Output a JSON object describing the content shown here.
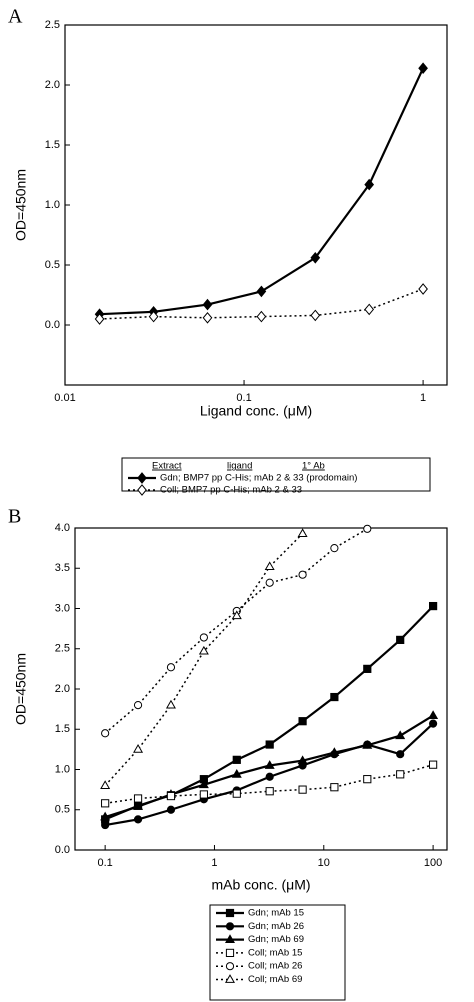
{
  "chart_data": [
    {
      "type": "line",
      "label": "A",
      "xlabel": "Ligand conc. (μM)",
      "ylabel": "OD=450nm",
      "xscale": "log",
      "xlim": [
        0.01,
        1.36
      ],
      "xticks": [
        0.01,
        0.1,
        1
      ],
      "ylim": [
        -0.5,
        2.5
      ],
      "yticks": [
        {
          "value": 0,
          "label": "0.0"
        },
        {
          "value": 0.5,
          "label": "0.5"
        },
        {
          "value": 1,
          "label": "1.0"
        },
        {
          "value": 1.5,
          "label": "1.5"
        },
        {
          "value": 2,
          "label": "2.0"
        },
        {
          "value": 2.5,
          "label": "2.5"
        }
      ],
      "x": [
        0.0156,
        0.03125,
        0.0625,
        0.125,
        0.25,
        0.5,
        1
      ],
      "legend_header": [
        "Extract",
        "ligand",
        "1° Ab"
      ],
      "series": [
        {
          "name": "Gdn; BMP7 pp C-His; mAb 2 & 33 (prodomain)",
          "color": "#000000",
          "marker": "diamond",
          "filled": true,
          "dashed": false,
          "values": [
            0.09,
            0.11,
            0.17,
            0.28,
            0.56,
            1.17,
            2.14
          ]
        },
        {
          "name": "Coll; BMP7 pp C-His; mAb 2 & 33",
          "color": "#000000",
          "marker": "diamond",
          "filled": false,
          "dashed": true,
          "values": [
            0.05,
            0.07,
            0.06,
            0.07,
            0.08,
            0.13,
            0.3
          ]
        }
      ]
    },
    {
      "type": "line",
      "label": "B",
      "xlabel": "mAb conc. (μM)",
      "ylabel": "OD=450nm",
      "xscale": "log",
      "xlim": [
        0.053,
        134
      ],
      "xticks": [
        0.1,
        1,
        10,
        100
      ],
      "ylim": [
        0,
        4
      ],
      "yticks": [
        {
          "value": 0,
          "label": "0.0"
        },
        {
          "value": 0.5,
          "label": "0.5"
        },
        {
          "value": 1,
          "label": "1.0"
        },
        {
          "value": 1.5,
          "label": "1.5"
        },
        {
          "value": 2,
          "label": "2.0"
        },
        {
          "value": 2.5,
          "label": "2.5"
        },
        {
          "value": 3,
          "label": "3.0"
        },
        {
          "value": 3.5,
          "label": "3.5"
        },
        {
          "value": 4,
          "label": "4.0"
        }
      ],
      "x": [
        0.1,
        0.2,
        0.4,
        0.8,
        1.6,
        3.2,
        6.4,
        12.5,
        25,
        50,
        100
      ],
      "series": [
        {
          "name": "Gdn; mAb 15",
          "color": "#000000",
          "marker": "square",
          "filled": true,
          "dashed": false,
          "values": [
            0.38,
            0.55,
            0.68,
            0.88,
            1.12,
            1.31,
            1.6,
            1.9,
            2.25,
            2.61,
            3.03
          ]
        },
        {
          "name": "Gdn; mAb 26",
          "color": "#000000",
          "marker": "circle",
          "filled": true,
          "dashed": false,
          "values": [
            0.31,
            0.38,
            0.5,
            0.63,
            0.74,
            0.91,
            1.05,
            1.19,
            1.31,
            1.19,
            1.57
          ]
        },
        {
          "name": "Gdn; mAb 69",
          "color": "#000000",
          "marker": "triangle",
          "filled": true,
          "dashed": false,
          "values": [
            0.41,
            0.54,
            0.69,
            0.81,
            0.94,
            1.05,
            1.11,
            1.21,
            1.3,
            1.42,
            1.67
          ]
        },
        {
          "name": "Coll; mAb 15",
          "color": "#000000",
          "marker": "square",
          "filled": false,
          "dashed": true,
          "values": [
            0.58,
            0.64,
            0.67,
            0.69,
            0.7,
            0.73,
            0.75,
            0.78,
            0.88,
            0.94,
            1.06
          ]
        },
        {
          "name": "Coll; mAb 26",
          "color": "#000000",
          "marker": "circle",
          "filled": false,
          "dashed": true,
          "values": [
            1.45,
            1.8,
            2.27,
            2.64,
            2.97,
            3.32,
            3.42,
            3.75,
            3.99,
            null,
            null
          ]
        },
        {
          "name": "Coll; mAb 69",
          "color": "#000000",
          "marker": "triangle",
          "filled": false,
          "dashed": true,
          "values": [
            0.8,
            1.25,
            1.8,
            2.47,
            2.91,
            3.52,
            3.93,
            null,
            null,
            null,
            null
          ]
        }
      ]
    }
  ]
}
